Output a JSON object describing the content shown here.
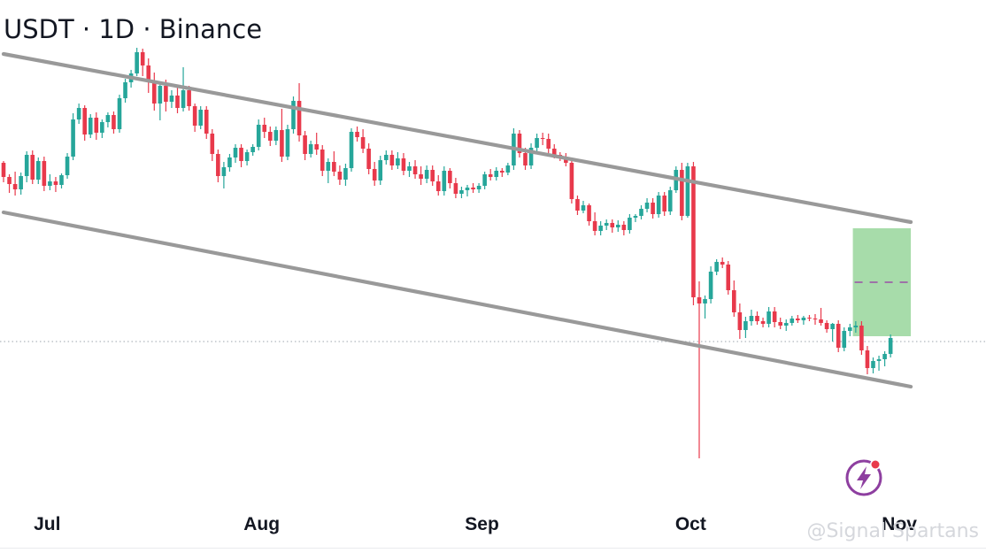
{
  "header": {
    "title": "USDT · 1D · Binance"
  },
  "watermark": {
    "text": "@Signal Spartans",
    "logo_icon": "lightning-bolt-icon"
  },
  "colors": {
    "up": "#26a69a",
    "down": "#e8394b",
    "channel": "#999999",
    "zone": "#a7dcaa",
    "zone_mid": "#9c4fa6",
    "ref": "#b0b8be"
  },
  "chart_data": {
    "type": "candlestick",
    "title": "USDT · 1D · Binance",
    "xlabel": "",
    "ylabel": "",
    "x_ticks": [
      {
        "label": "Jul",
        "index": 6
      },
      {
        "label": "Aug",
        "index": 43
      },
      {
        "label": "Sep",
        "index": 81
      },
      {
        "label": "Oct",
        "index": 117
      },
      {
        "label": "Nov",
        "index": 153
      }
    ],
    "ylim": [
      86,
      133
    ],
    "candles": [
      [
        120.2,
        120.4,
        118.0,
        118.6
      ],
      [
        118.6,
        118.9,
        116.8,
        117.8
      ],
      [
        117.8,
        119.2,
        116.5,
        117.2
      ],
      [
        117.2,
        119.1,
        116.6,
        118.7
      ],
      [
        118.7,
        121.5,
        118.0,
        121.1
      ],
      [
        121.1,
        121.6,
        117.8,
        118.3
      ],
      [
        118.3,
        120.8,
        117.8,
        120.4
      ],
      [
        120.4,
        120.9,
        117.0,
        117.6
      ],
      [
        117.6,
        118.9,
        117.1,
        118.1
      ],
      [
        118.1,
        118.6,
        116.9,
        117.7
      ],
      [
        117.7,
        119.0,
        117.3,
        118.8
      ],
      [
        118.8,
        121.3,
        118.4,
        120.9
      ],
      [
        120.9,
        125.8,
        120.5,
        125.1
      ],
      [
        125.1,
        126.9,
        124.6,
        126.4
      ],
      [
        126.4,
        126.7,
        122.7,
        123.4
      ],
      [
        123.4,
        125.7,
        123.0,
        125.3
      ],
      [
        125.3,
        125.9,
        122.8,
        123.6
      ],
      [
        123.6,
        125.1,
        123.0,
        124.8
      ],
      [
        124.8,
        125.9,
        124.2,
        125.6
      ],
      [
        125.6,
        126.0,
        123.5,
        124.0
      ],
      [
        124.0,
        127.9,
        123.6,
        127.5
      ],
      [
        127.5,
        129.7,
        127.0,
        129.3
      ],
      [
        129.3,
        130.7,
        128.7,
        130.3
      ],
      [
        130.3,
        133.2,
        130.0,
        132.7
      ],
      [
        132.7,
        133.1,
        130.0,
        131.2
      ],
      [
        131.2,
        132.0,
        128.1,
        129.4
      ],
      [
        129.4,
        130.4,
        126.1,
        126.9
      ],
      [
        126.9,
        129.3,
        125.0,
        128.9
      ],
      [
        128.9,
        129.6,
        126.0,
        127.1
      ],
      [
        127.1,
        128.4,
        126.4,
        127.8
      ],
      [
        127.8,
        128.8,
        125.8,
        126.4
      ],
      [
        126.4,
        131.0,
        126.0,
        128.4
      ],
      [
        128.4,
        128.9,
        126.1,
        126.6
      ],
      [
        126.6,
        126.9,
        123.7,
        124.4
      ],
      [
        124.4,
        126.6,
        124.0,
        126.2
      ],
      [
        126.2,
        126.6,
        122.9,
        123.5
      ],
      [
        123.5,
        124.0,
        120.4,
        121.2
      ],
      [
        121.2,
        121.7,
        118.0,
        118.7
      ],
      [
        118.7,
        120.3,
        117.3,
        119.7
      ],
      [
        119.7,
        121.2,
        119.2,
        120.8
      ],
      [
        120.8,
        122.3,
        120.2,
        121.9
      ],
      [
        121.9,
        122.3,
        119.7,
        120.4
      ],
      [
        120.4,
        121.7,
        119.9,
        121.4
      ],
      [
        121.4,
        122.3,
        121.0,
        122.0
      ],
      [
        122.0,
        125.1,
        121.6,
        124.5
      ],
      [
        124.5,
        125.3,
        123.0,
        123.7
      ],
      [
        123.7,
        124.3,
        122.1,
        122.7
      ],
      [
        122.7,
        124.3,
        122.2,
        123.9
      ],
      [
        123.9,
        126.3,
        120.3,
        120.9
      ],
      [
        120.9,
        124.5,
        120.5,
        124.0
      ],
      [
        124.0,
        127.7,
        123.5,
        127.2
      ],
      [
        127.2,
        129.2,
        122.6,
        123.3
      ],
      [
        123.3,
        123.8,
        120.5,
        121.2
      ],
      [
        121.2,
        122.7,
        120.8,
        122.3
      ],
      [
        122.3,
        123.6,
        121.1,
        121.7
      ],
      [
        121.7,
        122.2,
        118.7,
        119.3
      ],
      [
        119.3,
        120.7,
        117.9,
        120.3
      ],
      [
        120.3,
        121.5,
        118.7,
        119.2
      ],
      [
        119.2,
        119.9,
        117.7,
        118.3
      ],
      [
        118.3,
        120.1,
        117.6,
        119.6
      ],
      [
        119.6,
        124.1,
        119.2,
        123.7
      ],
      [
        123.7,
        124.3,
        122.6,
        123.1
      ],
      [
        123.1,
        124.0,
        121.3,
        121.8
      ],
      [
        121.8,
        122.4,
        118.9,
        119.5
      ],
      [
        119.5,
        120.3,
        117.6,
        118.2
      ],
      [
        118.2,
        121.0,
        117.7,
        120.5
      ],
      [
        120.5,
        121.6,
        120.0,
        121.1
      ],
      [
        121.1,
        121.6,
        119.4,
        119.9
      ],
      [
        119.9,
        121.4,
        119.5,
        120.7
      ],
      [
        120.7,
        121.3,
        118.8,
        119.3
      ],
      [
        119.3,
        120.3,
        118.6,
        119.8
      ],
      [
        119.8,
        120.5,
        118.4,
        118.9
      ],
      [
        118.9,
        119.8,
        117.7,
        118.4
      ],
      [
        118.4,
        119.9,
        117.9,
        119.4
      ],
      [
        119.4,
        119.9,
        117.6,
        118.1
      ],
      [
        118.1,
        118.8,
        116.5,
        117.0
      ],
      [
        117.0,
        119.8,
        116.5,
        119.3
      ],
      [
        119.3,
        119.6,
        117.3,
        117.9
      ],
      [
        117.9,
        118.5,
        116.2,
        116.7
      ],
      [
        116.7,
        117.5,
        116.2,
        117.1
      ],
      [
        117.1,
        117.7,
        116.4,
        117.4
      ],
      [
        117.4,
        117.9,
        116.8,
        117.2
      ],
      [
        117.2,
        117.9,
        116.8,
        117.6
      ],
      [
        117.6,
        119.2,
        117.2,
        118.9
      ],
      [
        118.9,
        119.5,
        118.2,
        118.6
      ],
      [
        118.6,
        119.7,
        118.2,
        119.3
      ],
      [
        119.3,
        119.6,
        118.6,
        119.1
      ],
      [
        119.1,
        120.2,
        118.8,
        119.9
      ],
      [
        119.9,
        124.1,
        119.4,
        123.5
      ],
      [
        123.5,
        123.9,
        120.8,
        121.3
      ],
      [
        121.3,
        121.9,
        119.4,
        119.9
      ],
      [
        119.9,
        122.4,
        119.5,
        121.9
      ],
      [
        121.9,
        123.5,
        121.3,
        123.0
      ],
      [
        123.0,
        123.6,
        122.2,
        122.9
      ],
      [
        122.9,
        123.5,
        121.3,
        121.8
      ],
      [
        121.8,
        122.3,
        120.7,
        121.1
      ],
      [
        121.1,
        121.4,
        120.4,
        120.9
      ],
      [
        120.9,
        121.3,
        119.8,
        120.2
      ],
      [
        120.2,
        120.7,
        115.6,
        116.1
      ],
      [
        116.1,
        116.5,
        114.3,
        114.8
      ],
      [
        114.8,
        115.9,
        114.5,
        115.4
      ],
      [
        115.4,
        115.6,
        113.1,
        113.6
      ],
      [
        113.6,
        114.6,
        112.0,
        112.5
      ],
      [
        112.5,
        113.6,
        112.0,
        113.1
      ],
      [
        113.1,
        113.8,
        112.6,
        113.4
      ],
      [
        113.4,
        113.8,
        112.3,
        112.9
      ],
      [
        112.9,
        113.7,
        112.4,
        113.2
      ],
      [
        113.2,
        113.6,
        112.0,
        112.6
      ],
      [
        112.6,
        114.4,
        112.2,
        114.0
      ],
      [
        114.0,
        114.4,
        113.5,
        114.2
      ],
      [
        114.2,
        115.4,
        113.8,
        115.0
      ],
      [
        115.0,
        116.2,
        114.6,
        115.7
      ],
      [
        115.7,
        116.2,
        113.9,
        114.4
      ],
      [
        114.4,
        116.9,
        114.0,
        116.5
      ],
      [
        116.5,
        116.9,
        114.2,
        114.7
      ],
      [
        114.7,
        117.5,
        114.3,
        117.1
      ],
      [
        117.1,
        119.8,
        116.8,
        119.4
      ],
      [
        119.4,
        120.2,
        113.7,
        114.2
      ],
      [
        114.2,
        120.2,
        114.0,
        119.8
      ],
      [
        119.8,
        120.3,
        104.1,
        105.0
      ],
      [
        105.0,
        106.8,
        86.8,
        104.3
      ],
      [
        104.3,
        105.2,
        102.6,
        104.8
      ],
      [
        104.8,
        108.5,
        104.3,
        107.9
      ],
      [
        107.9,
        109.3,
        107.5,
        109.0
      ],
      [
        109.0,
        109.5,
        108.3,
        108.7
      ],
      [
        108.7,
        109.1,
        105.3,
        105.8
      ],
      [
        105.8,
        106.9,
        102.8,
        103.3
      ],
      [
        103.3,
        104.3,
        100.3,
        101.3
      ],
      [
        101.3,
        102.8,
        100.4,
        102.3
      ],
      [
        102.3,
        103.6,
        101.8,
        102.9
      ],
      [
        102.9,
        103.4,
        101.9,
        102.3
      ],
      [
        102.3,
        102.7,
        101.6,
        102.0
      ],
      [
        102.0,
        103.9,
        101.6,
        103.4
      ],
      [
        103.4,
        103.9,
        101.6,
        102.2
      ],
      [
        102.2,
        102.7,
        101.4,
        101.8
      ],
      [
        101.8,
        102.5,
        101.2,
        102.1
      ],
      [
        102.1,
        102.9,
        101.8,
        102.6
      ],
      [
        102.6,
        103.0,
        102.1,
        102.4
      ],
      [
        102.4,
        102.9,
        101.9,
        102.7
      ],
      [
        102.7,
        103.0,
        102.3,
        102.6
      ],
      [
        102.6,
        103.1,
        101.9,
        102.5
      ],
      [
        102.5,
        103.8,
        101.8,
        102.1
      ],
      [
        102.1,
        102.4,
        101.0,
        101.4
      ],
      [
        101.4,
        102.1,
        100.0,
        102.0
      ],
      [
        102.0,
        102.4,
        98.8,
        99.3
      ],
      [
        99.3,
        101.6,
        98.9,
        101.2
      ],
      [
        101.2,
        102.0,
        100.6,
        101.6
      ],
      [
        101.6,
        102.3,
        101.0,
        101.8
      ],
      [
        101.8,
        102.3,
        98.5,
        99.0
      ],
      [
        99.0,
        99.5,
        96.3,
        97.0
      ],
      [
        97.0,
        98.2,
        96.4,
        97.8
      ],
      [
        97.8,
        98.4,
        96.7,
        98.0
      ],
      [
        98.0,
        98.9,
        97.2,
        98.6
      ],
      [
        98.6,
        100.8,
        98.2,
        100.4
      ]
    ],
    "channel_upper": [
      {
        "x": 0,
        "y": 132.5
      },
      {
        "x": 156.5,
        "y": 113.5
      }
    ],
    "channel_lower": [
      {
        "x": 0,
        "y": 114.6
      },
      {
        "x": 156.5,
        "y": 94.9
      }
    ],
    "target_zone": {
      "x_from": 146.5,
      "x_to": 156.5,
      "y_from": 100.6,
      "y_to": 112.8,
      "mid_y": 106.7
    },
    "reference_line_y": 100.0
  }
}
